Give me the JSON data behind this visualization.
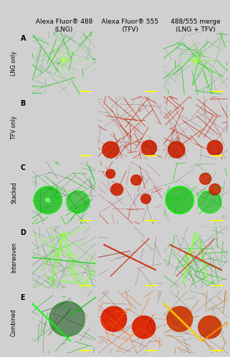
{
  "title_col1": "Alexa Fluor® 488\n(LNG)",
  "title_col2": "Alexa Fluor® 555\n(TFV)",
  "title_col3": "488/555 merge\n(LNG + TFV)",
  "row_labels": [
    "A",
    "B",
    "C",
    "D",
    "E"
  ],
  "row_side_labels": [
    "LNG only",
    "TFV only",
    "Stacked",
    "Interwoven",
    "Combined"
  ],
  "background_color": "#d0d0d0",
  "cell_bg": "#000000",
  "n_rows": 5,
  "n_cols": 3,
  "fig_width": 3.22,
  "fig_height": 5.0,
  "header_fontsize": 6.5,
  "row_label_fontsize": 7,
  "side_label_fontsize": 5.5
}
